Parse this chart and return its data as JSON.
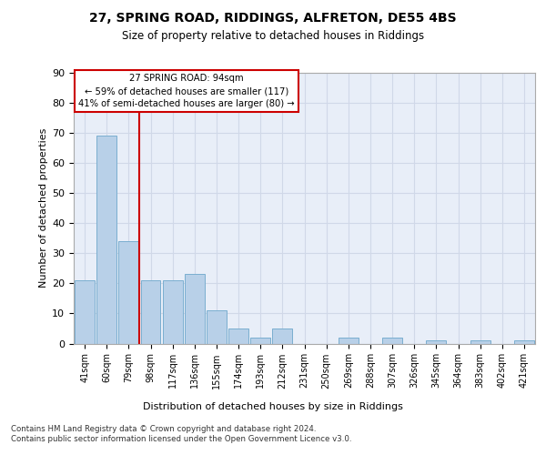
{
  "title1": "27, SPRING ROAD, RIDDINGS, ALFRETON, DE55 4BS",
  "title2": "Size of property relative to detached houses in Riddings",
  "xlabel": "Distribution of detached houses by size in Riddings",
  "ylabel": "Number of detached properties",
  "categories": [
    "41sqm",
    "60sqm",
    "79sqm",
    "98sqm",
    "117sqm",
    "136sqm",
    "155sqm",
    "174sqm",
    "193sqm",
    "212sqm",
    "231sqm",
    "250sqm",
    "269sqm",
    "288sqm",
    "307sqm",
    "326sqm",
    "345sqm",
    "364sqm",
    "383sqm",
    "402sqm",
    "421sqm"
  ],
  "values": [
    21,
    69,
    34,
    21,
    21,
    23,
    11,
    5,
    2,
    5,
    0,
    0,
    2,
    0,
    2,
    0,
    1,
    0,
    1,
    0,
    1
  ],
  "bar_color": "#b8d0e8",
  "bar_edge_color": "#7aaed0",
  "grid_color": "#d0d8e8",
  "background_color": "#e8eef8",
  "vline_color": "#cc0000",
  "annotation_box_text": "27 SPRING ROAD: 94sqm\n← 59% of detached houses are smaller (117)\n41% of semi-detached houses are larger (80) →",
  "annotation_box_color": "#cc0000",
  "footer_text": "Contains HM Land Registry data © Crown copyright and database right 2024.\nContains public sector information licensed under the Open Government Licence v3.0.",
  "ylim": [
    0,
    90
  ],
  "yticks": [
    0,
    10,
    20,
    30,
    40,
    50,
    60,
    70,
    80,
    90
  ]
}
